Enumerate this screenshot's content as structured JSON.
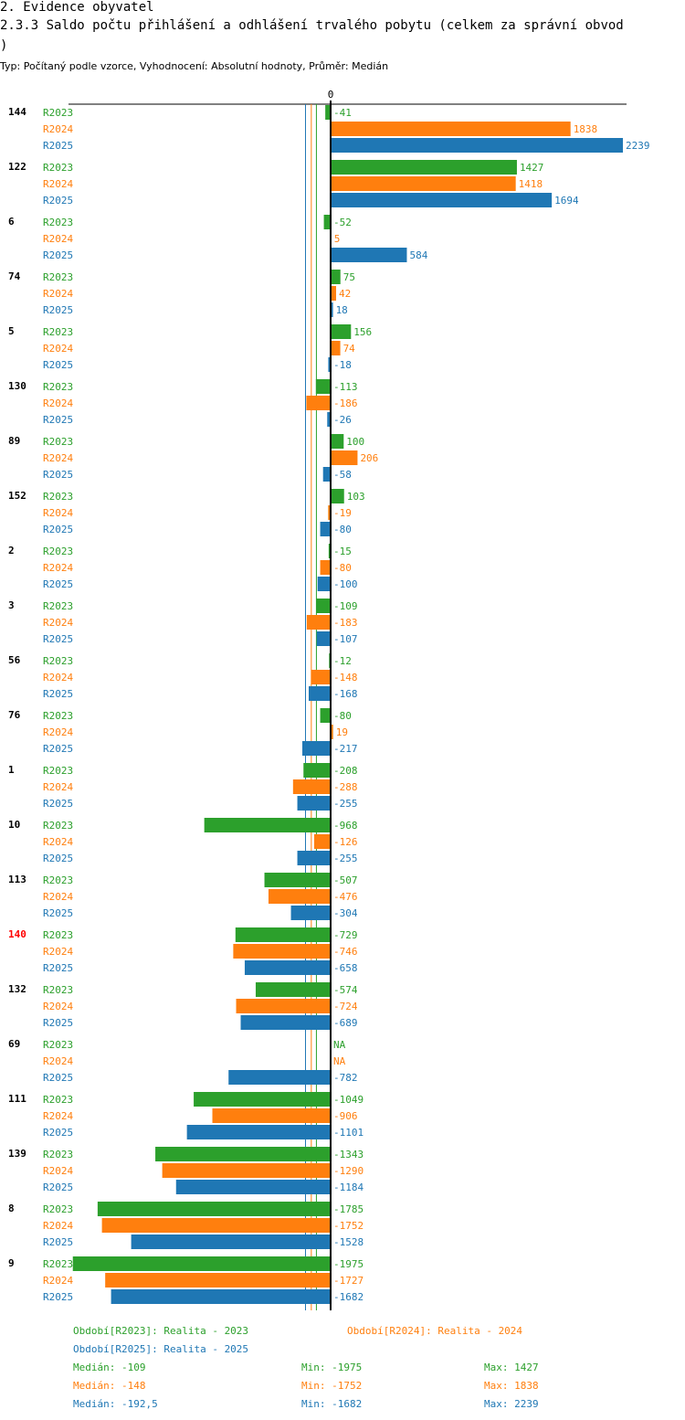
{
  "header": {
    "section": "2. Evidence obyvatel",
    "title_line1": "2.3.3 Saldo počtu přihlášení a odhlášení trvalého pobytu (celkem za správní obvod",
    "title_line2": ")",
    "subtitle": "Typ: Počítaný podle vzorce, Vyhodnocení: Absolutní hodnoty, Průměr: Medián"
  },
  "colors": {
    "R2023": "#2ca02c",
    "R2024": "#ff7f0e",
    "R2025": "#1f77b4",
    "highlight": "#ff0000"
  },
  "chart_data": {
    "type": "bar",
    "orientation": "horizontal",
    "zero_label": "0",
    "series_names": [
      "R2023",
      "R2024",
      "R2025"
    ],
    "groups": [
      {
        "label": "144",
        "highlight": false,
        "values": [
          -41,
          1838,
          2239
        ]
      },
      {
        "label": "122",
        "highlight": false,
        "values": [
          1427,
          1418,
          1694
        ]
      },
      {
        "label": "6",
        "highlight": false,
        "values": [
          -52,
          5,
          584
        ]
      },
      {
        "label": "74",
        "highlight": false,
        "values": [
          75,
          42,
          18
        ]
      },
      {
        "label": "5",
        "highlight": false,
        "values": [
          156,
          74,
          -18
        ]
      },
      {
        "label": "130",
        "highlight": false,
        "values": [
          -113,
          -186,
          -26
        ]
      },
      {
        "label": "89",
        "highlight": false,
        "values": [
          100,
          206,
          -58
        ]
      },
      {
        "label": "152",
        "highlight": false,
        "values": [
          103,
          -19,
          -80
        ]
      },
      {
        "label": "2",
        "highlight": false,
        "values": [
          -15,
          -80,
          -100
        ]
      },
      {
        "label": "3",
        "highlight": false,
        "values": [
          -109,
          -183,
          -107
        ]
      },
      {
        "label": "56",
        "highlight": false,
        "values": [
          -12,
          -148,
          -168
        ]
      },
      {
        "label": "76",
        "highlight": false,
        "values": [
          -80,
          19,
          -217
        ]
      },
      {
        "label": "1",
        "highlight": false,
        "values": [
          -208,
          -288,
          -255
        ]
      },
      {
        "label": "10",
        "highlight": false,
        "values": [
          -968,
          -126,
          -255
        ]
      },
      {
        "label": "113",
        "highlight": false,
        "values": [
          -507,
          -476,
          -304
        ]
      },
      {
        "label": "140",
        "highlight": true,
        "values": [
          -729,
          -746,
          -658
        ]
      },
      {
        "label": "132",
        "highlight": false,
        "values": [
          -574,
          -724,
          -689
        ]
      },
      {
        "label": "69",
        "highlight": false,
        "values": [
          null,
          null,
          -782
        ]
      },
      {
        "label": "111",
        "highlight": false,
        "values": [
          -1049,
          -906,
          -1101
        ]
      },
      {
        "label": "139",
        "highlight": false,
        "values": [
          -1343,
          -1290,
          -1184
        ]
      },
      {
        "label": "8",
        "highlight": false,
        "values": [
          -1785,
          -1752,
          -1528
        ]
      },
      {
        "label": "9",
        "highlight": false,
        "values": [
          -1975,
          -1727,
          -1682
        ]
      }
    ],
    "na_label": "NA",
    "medians": [
      -109,
      -148,
      -192.5
    ],
    "xlim": [
      -2000,
      2280
    ]
  },
  "legend": {
    "periods": [
      "Období[R2023]: Realita - 2023",
      "Období[R2024]: Realita - 2024",
      "Období[R2025]: Realita - 2025"
    ],
    "stats": [
      {
        "median": "Medián: -109",
        "min": "Min: -1975",
        "max": "Max: 1427"
      },
      {
        "median": "Medián: -148",
        "min": "Min: -1752",
        "max": "Max: 1838"
      },
      {
        "median": "Medián: -192,5",
        "min": "Min: -1682",
        "max": "Max: 2239"
      }
    ]
  }
}
